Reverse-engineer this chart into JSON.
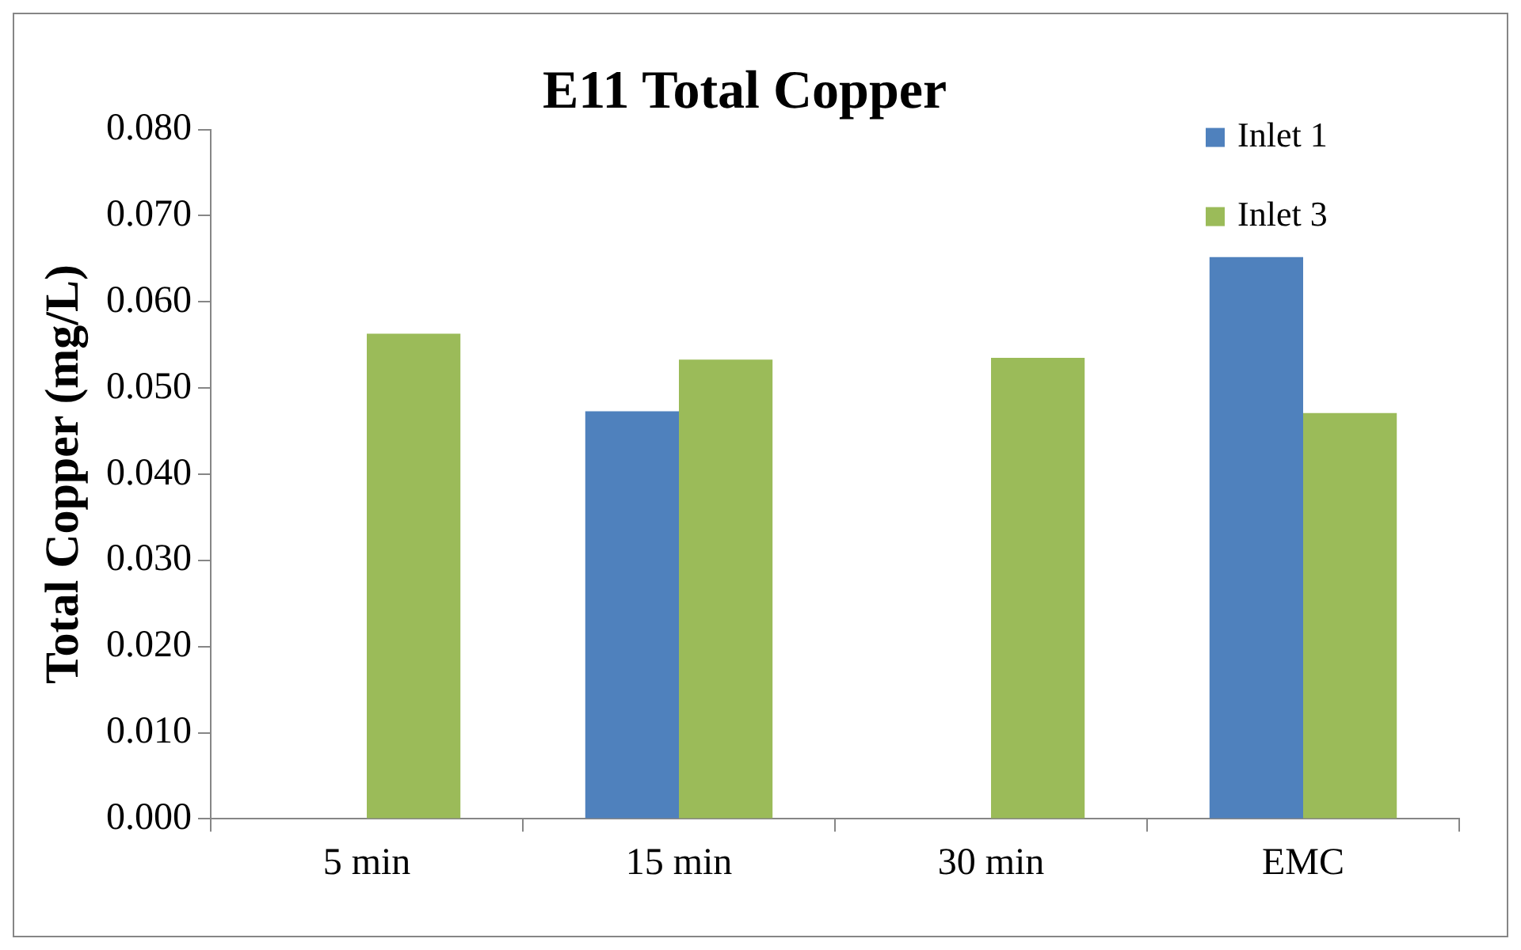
{
  "chart_data": {
    "type": "bar",
    "title": "E11 Total Copper",
    "ylabel": "Total Copper (mg/L)",
    "categories": [
      "5 min",
      "15 min",
      "30 min",
      "EMC"
    ],
    "series": [
      {
        "name": "Inlet 1",
        "color": "#4f81bd",
        "values": [
          null,
          0.0473,
          null,
          0.0652
        ]
      },
      {
        "name": "Inlet 3",
        "color": "#9bbb59",
        "values": [
          0.0563,
          0.0533,
          0.0535,
          0.0471
        ]
      }
    ],
    "ylim": [
      0,
      0.08
    ],
    "yticks": [
      {
        "value": 0,
        "label": "0.000"
      },
      {
        "value": 0.01,
        "label": "0.010"
      },
      {
        "value": 0.02,
        "label": "0.020"
      },
      {
        "value": 0.03,
        "label": "0.030"
      },
      {
        "value": 0.04,
        "label": "0.040"
      },
      {
        "value": 0.05,
        "label": "0.050"
      },
      {
        "value": 0.06,
        "label": "0.060"
      },
      {
        "value": 0.07,
        "label": "0.070"
      },
      {
        "value": 0.08,
        "label": "0.080"
      }
    ],
    "grid": false,
    "legend": "top right"
  }
}
